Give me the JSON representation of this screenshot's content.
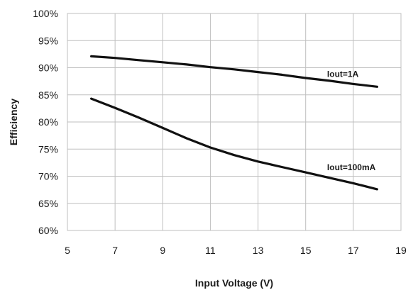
{
  "chart_data": {
    "type": "line",
    "title": "",
    "xlabel": "Input Voltage (V)",
    "ylabel": "Efficiency",
    "xlim": [
      5,
      19
    ],
    "ylim": [
      60,
      100
    ],
    "x_ticks": [
      {
        "value": 5,
        "label": "5"
      },
      {
        "value": 7,
        "label": "7"
      },
      {
        "value": 9,
        "label": "9"
      },
      {
        "value": 11,
        "label": "11"
      },
      {
        "value": 13,
        "label": "13"
      },
      {
        "value": 15,
        "label": "15"
      },
      {
        "value": 17,
        "label": "17"
      },
      {
        "value": 19,
        "label": "19"
      }
    ],
    "y_ticks": [
      {
        "value": 60,
        "label": "60%"
      },
      {
        "value": 65,
        "label": "65%"
      },
      {
        "value": 70,
        "label": "70%"
      },
      {
        "value": 75,
        "label": "75%"
      },
      {
        "value": 80,
        "label": "80%"
      },
      {
        "value": 85,
        "label": "85%"
      },
      {
        "value": 90,
        "label": "90%"
      },
      {
        "value": 95,
        "label": "95%"
      },
      {
        "value": 100,
        "label": "100%"
      }
    ],
    "grid": true,
    "legend": "none",
    "line_color": "#111111",
    "grid_color": "#bfbfbf",
    "series": [
      {
        "name": "Iout=1A",
        "x": [
          6,
          7,
          8,
          9,
          10,
          11,
          12,
          13,
          14,
          15,
          16,
          17,
          18
        ],
        "values": [
          92.1,
          91.8,
          91.4,
          91.0,
          90.6,
          90.1,
          89.7,
          89.2,
          88.7,
          88.1,
          87.6,
          87.0,
          86.5
        ],
        "label_at": [
          15.9,
          88.3
        ]
      },
      {
        "name": "Iout=100mA",
        "x": [
          6,
          7,
          8,
          9,
          10,
          11,
          12,
          13,
          14,
          15,
          16,
          17,
          18
        ],
        "values": [
          84.3,
          82.6,
          80.8,
          78.9,
          77.0,
          75.3,
          73.9,
          72.7,
          71.7,
          70.7,
          69.7,
          68.7,
          67.6
        ],
        "label_at": [
          15.9,
          71.1
        ]
      }
    ]
  }
}
